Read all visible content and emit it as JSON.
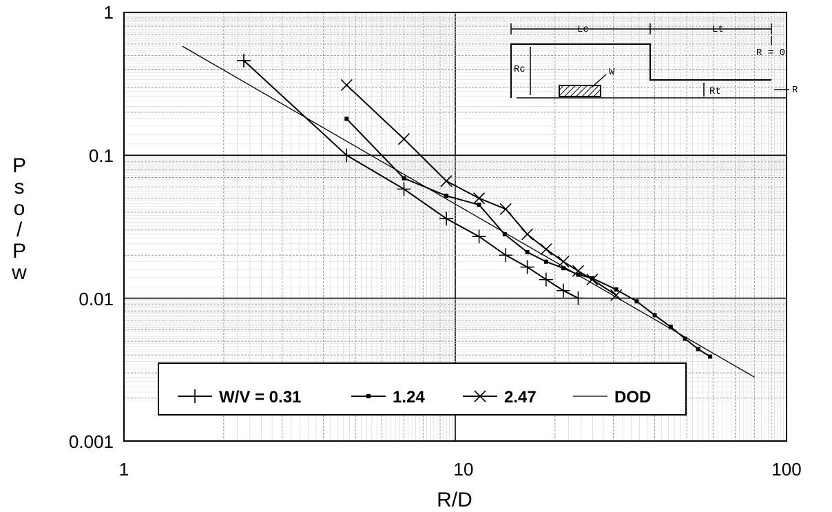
{
  "chart_data": {
    "type": "line",
    "title": "",
    "xlabel": "R/D",
    "ylabel": "Pso/Pw",
    "x_scale": "log",
    "y_scale": "log",
    "xlim": [
      1,
      100
    ],
    "ylim": [
      0.001,
      1
    ],
    "x_tick_labels": [
      "1",
      "10",
      "100"
    ],
    "y_tick_labels": [
      "1",
      "0.1",
      "0.01",
      "0.001"
    ],
    "grid": true,
    "legend_position": "bottom-left",
    "series": [
      {
        "name": "W/V = 0.31",
        "marker": "plus",
        "x": [
          2.3,
          4.7,
          7.0,
          9.4,
          11.8,
          14.2,
          16.5,
          18.8,
          21.2,
          23.5
        ],
        "y": [
          0.46,
          0.1,
          0.058,
          0.036,
          0.027,
          0.02,
          0.0165,
          0.0135,
          0.0113,
          0.01
        ]
      },
      {
        "name": "1.24",
        "marker": "square",
        "x": [
          4.7,
          7.0,
          9.4,
          11.8,
          14.1,
          16.5,
          18.8,
          21.2,
          23.5,
          25.9,
          30.6,
          35.3,
          40.0,
          44.7,
          49.4,
          54.1,
          58.8
        ],
        "y": [
          0.18,
          0.069,
          0.052,
          0.045,
          0.028,
          0.021,
          0.018,
          0.0162,
          0.0146,
          0.0138,
          0.0115,
          0.0095,
          0.0076,
          0.0063,
          0.0052,
          0.0044,
          0.0039
        ]
      },
      {
        "name": "2.47",
        "marker": "x",
        "x": [
          4.7,
          7.0,
          9.4,
          11.8,
          14.2,
          16.5,
          18.8,
          21.2,
          23.5,
          25.9,
          30.6
        ],
        "y": [
          0.31,
          0.13,
          0.066,
          0.05,
          0.042,
          0.028,
          0.022,
          0.018,
          0.0155,
          0.0135,
          0.0105
        ]
      },
      {
        "name": "DOD",
        "marker": "none",
        "x": [
          1.5,
          80
        ],
        "y": [
          0.58,
          0.0028
        ]
      }
    ],
    "inset_diagram": {
      "labels": [
        "Lc",
        "Lt",
        "R = 0",
        "Rc",
        "W",
        "Rt",
        "R"
      ]
    }
  }
}
